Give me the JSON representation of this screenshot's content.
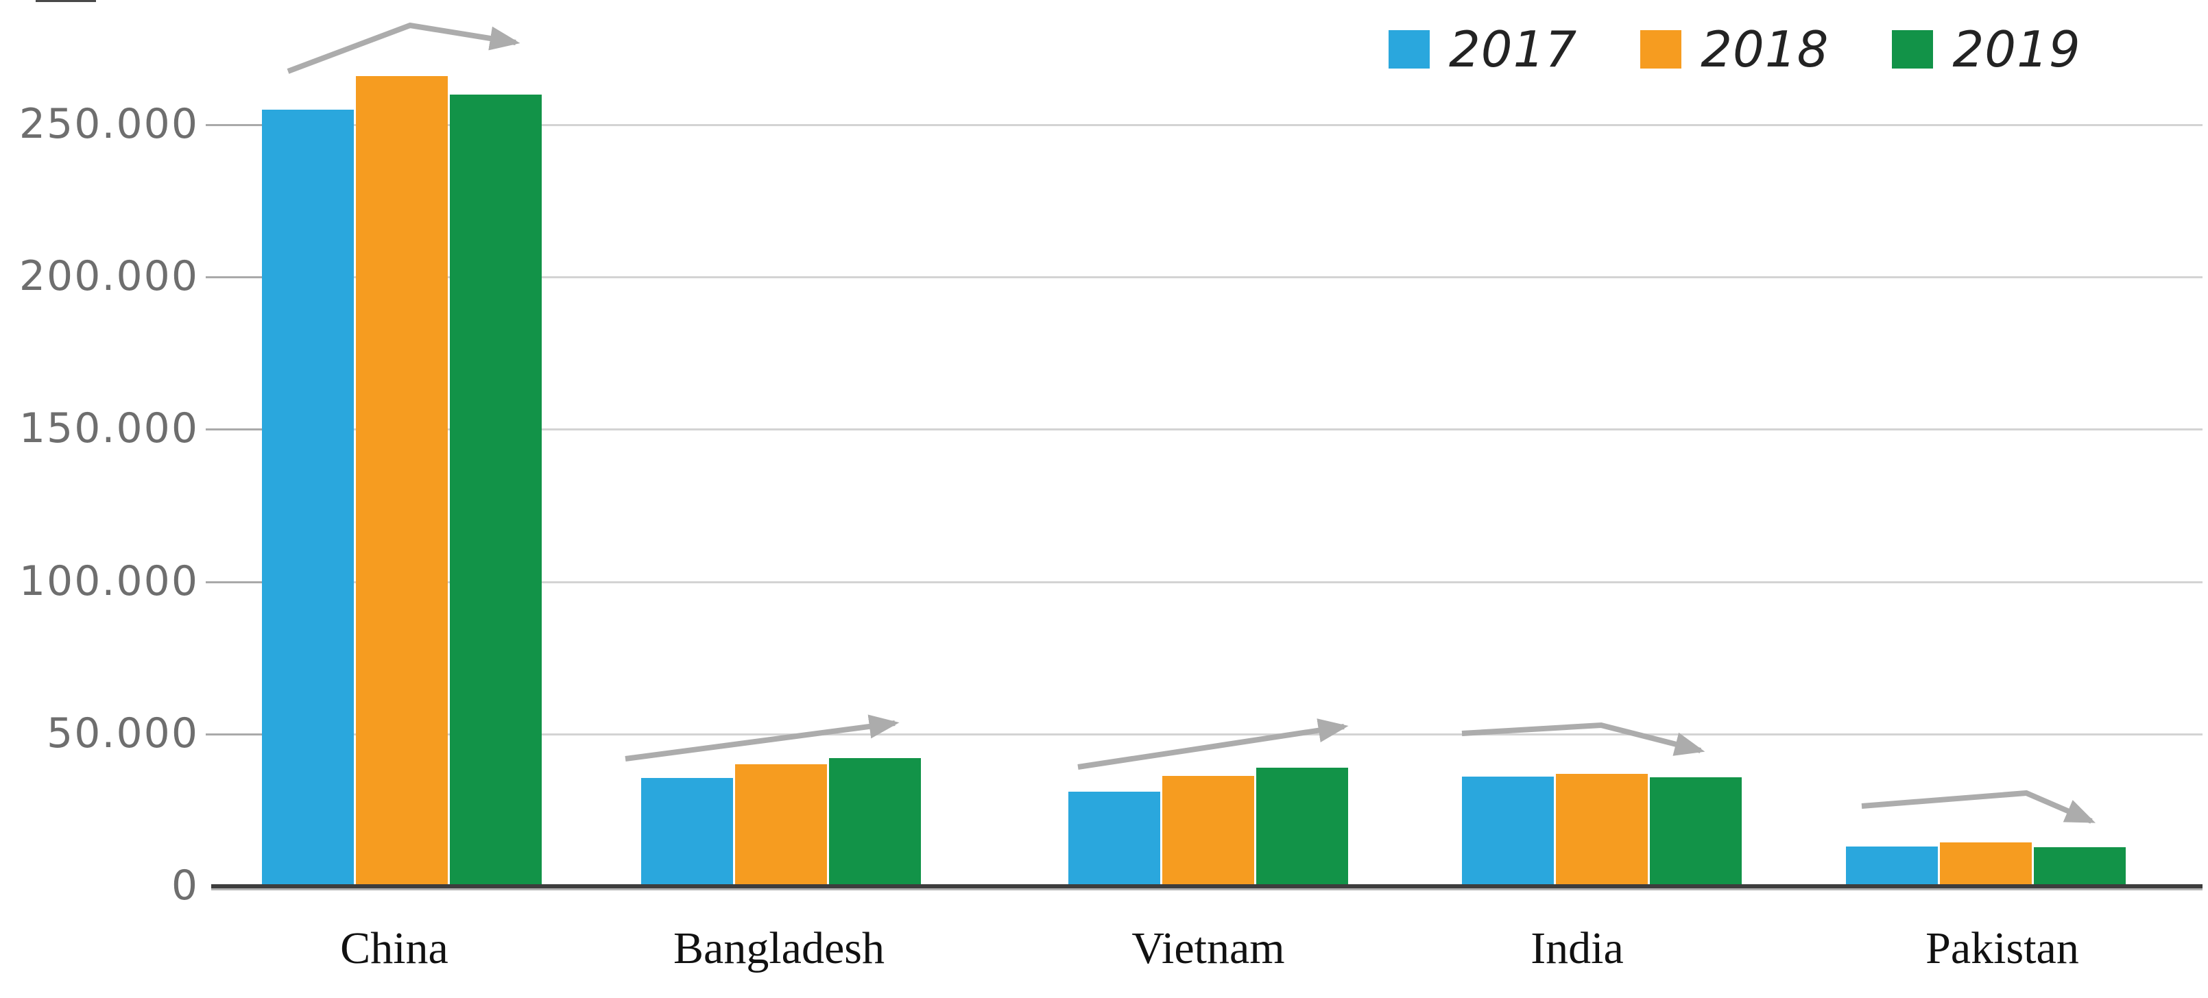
{
  "chart_data": {
    "type": "bar",
    "title": "",
    "xlabel": "",
    "ylabel": "",
    "categories": [
      "China",
      "Bangladesh",
      "Vietnam",
      "India",
      "Pakistan"
    ],
    "series": [
      {
        "name": "2017",
        "color": "#2AA7DD",
        "values": [
          255000,
          35500,
          31000,
          36000,
          13000
        ]
      },
      {
        "name": "2018",
        "color": "#F69C20",
        "values": [
          266000,
          40000,
          36200,
          37000,
          14500
        ]
      },
      {
        "name": "2019",
        "color": "#129348",
        "values": [
          260000,
          42000,
          39000,
          35800,
          12800
        ]
      }
    ],
    "y_axis": {
      "ticks": [
        {
          "label": "250.000",
          "value": 250000
        },
        {
          "label": "200.000",
          "value": 200000
        },
        {
          "label": "150.000",
          "value": 150000
        },
        {
          "label": "100.000",
          "value": 100000
        },
        {
          "label": "50.000",
          "value": 50000
        },
        {
          "label": "0",
          "value": 0
        }
      ],
      "ylim": [
        0,
        278000
      ],
      "number_format": "thousands with dot separator"
    },
    "grid": true,
    "legend_position": "top-right",
    "annotations": [
      {
        "type": "trend-arrow",
        "category": "China",
        "shape": "rise then slight fall",
        "color": "#ACACAC"
      },
      {
        "type": "trend-arrow",
        "category": "Bangladesh",
        "shape": "rising",
        "color": "#ACACAC"
      },
      {
        "type": "trend-arrow",
        "category": "Vietnam",
        "shape": "rising",
        "color": "#ACACAC"
      },
      {
        "type": "trend-arrow",
        "category": "India",
        "shape": "flat then falling",
        "color": "#ACACAC"
      },
      {
        "type": "trend-arrow",
        "category": "Pakistan",
        "shape": "flat then falling",
        "color": "#ACACAC"
      }
    ]
  },
  "legend": {
    "items": [
      {
        "label": "2017",
        "color": "#2AA7DD"
      },
      {
        "label": "2018",
        "color": "#F69C20"
      },
      {
        "label": "2019",
        "color": "#129348"
      }
    ]
  },
  "colors": {
    "blue_2017": "#2AA7DD",
    "orange_2018": "#F69C20",
    "green_2019": "#129348",
    "gridline": "#D3D3D3",
    "tick_leader": "#A9A9A9",
    "axis_line": "#3D3D3D",
    "arrow_gray": "#ACACAC",
    "y_label_text": "#6E6E6E",
    "x_label_text": "#111111",
    "legend_text": "#232323",
    "background": "#FFFFFF"
  }
}
